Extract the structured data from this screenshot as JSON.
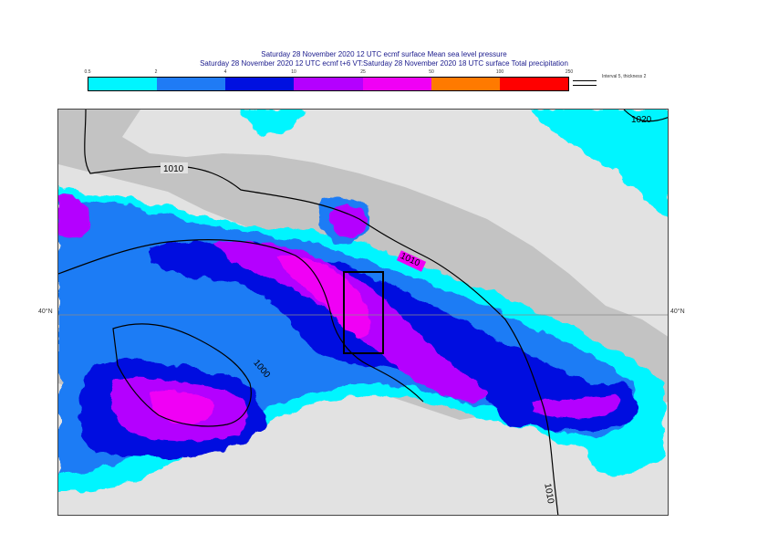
{
  "header": {
    "line1": "Saturday 28 November 2020 12 UTC ecmf surface  Mean sea level pressure",
    "line2": "Saturday 28 November 2020 12 UTC ecmf t+6 VT:Saturday 28 November 2020 18 UTC surface  Total precipitation"
  },
  "legend": {
    "ticks": [
      "0.5",
      "2",
      "4",
      "10",
      "25",
      "50",
      "100",
      "250"
    ],
    "colors": [
      "#00f5ff",
      "#1f7bf5",
      "#0010e0",
      "#b400ff",
      "#f000f5",
      "#ff7a00",
      "#ff0000"
    ],
    "interval_text": "Interval 5, thickness 2"
  },
  "map": {
    "latitude_label": "40°N",
    "isobar_labels": [
      "1010",
      "1010",
      "1010",
      "1000",
      "1020"
    ],
    "land_color": "#e2e2e2",
    "sea_color": "#c3c3c3",
    "box_color": "#000000"
  }
}
